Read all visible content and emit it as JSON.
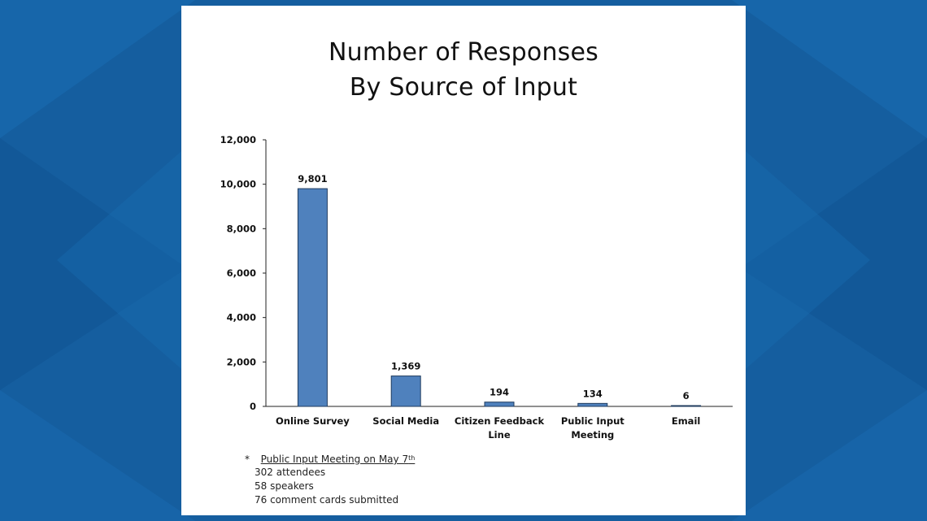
{
  "colors": {
    "background": "#155e9f",
    "panel": "#ffffff",
    "bar_fill": "#4f81bd",
    "bar_stroke": "#1f3b5e"
  },
  "chart_data": {
    "type": "bar",
    "title_lines": [
      "Number of Responses",
      "By Source of Input"
    ],
    "categories": [
      [
        "Online Survey"
      ],
      [
        "Social Media"
      ],
      [
        "Citizen Feedback",
        "Line"
      ],
      [
        "Public Input",
        "Meeting"
      ],
      [
        "Email"
      ]
    ],
    "values": [
      9801,
      1369,
      194,
      134,
      6
    ],
    "data_labels": [
      "9,801",
      "1,369",
      "194",
      "134",
      "6"
    ],
    "y_ticks": [
      "0",
      "2,000",
      "4,000",
      "6,000",
      "8,000",
      "10,000",
      "12,000"
    ],
    "ylim": [
      0,
      12000
    ],
    "y_tick_values": [
      0,
      2000,
      4000,
      6000,
      8000,
      10000,
      12000
    ],
    "xlabel": "",
    "ylabel": "",
    "grid": false,
    "legend": "none"
  },
  "footnote": {
    "marker": "*",
    "heading": "Public Input Meeting on May 7",
    "heading_sup": "th",
    "lines": [
      "302 attendees",
      "58 speakers",
      "76 comment cards submitted"
    ]
  }
}
